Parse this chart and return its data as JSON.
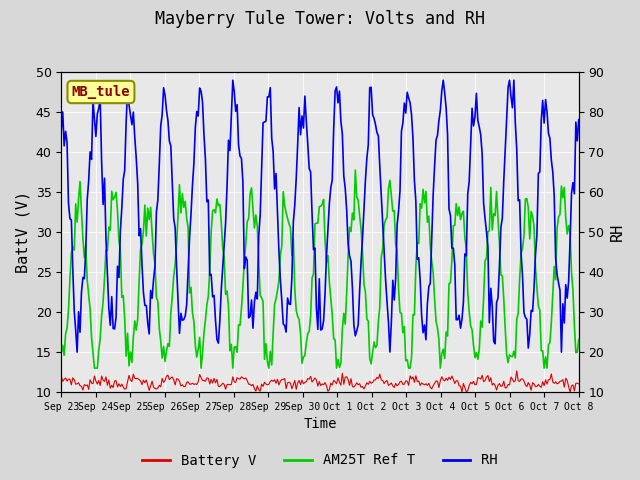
{
  "title": "Mayberry Tule Tower: Volts and RH",
  "xlabel": "Time",
  "ylabel_left": "BattV (V)",
  "ylabel_right": "RH",
  "station_label": "MB_tule",
  "ylim_left": [
    10,
    50
  ],
  "ylim_right": [
    10,
    90
  ],
  "yticks_left": [
    10,
    15,
    20,
    25,
    30,
    35,
    40,
    45,
    50
  ],
  "yticks_right": [
    10,
    20,
    30,
    40,
    50,
    60,
    70,
    80,
    90
  ],
  "x_tick_labels": [
    "Sep 23",
    "Sep 24",
    "Sep 25",
    "Sep 26",
    "Sep 27",
    "Sep 28",
    "Sep 29",
    "Sep 30",
    "Oct 1",
    "Oct 2",
    "Oct 3",
    "Oct 4",
    "Oct 5",
    "Oct 6",
    "Oct 7",
    "Oct 8"
  ],
  "fig_bg_color": "#d8d8d8",
  "plot_bg_color": "#e8e8e8",
  "battery_color": "#dd0000",
  "am25t_color": "#00cc00",
  "rh_color": "#0000ee",
  "legend_labels": [
    "Battery V",
    "AM25T Ref T",
    "RH"
  ],
  "n_points": 360,
  "seed": 7
}
